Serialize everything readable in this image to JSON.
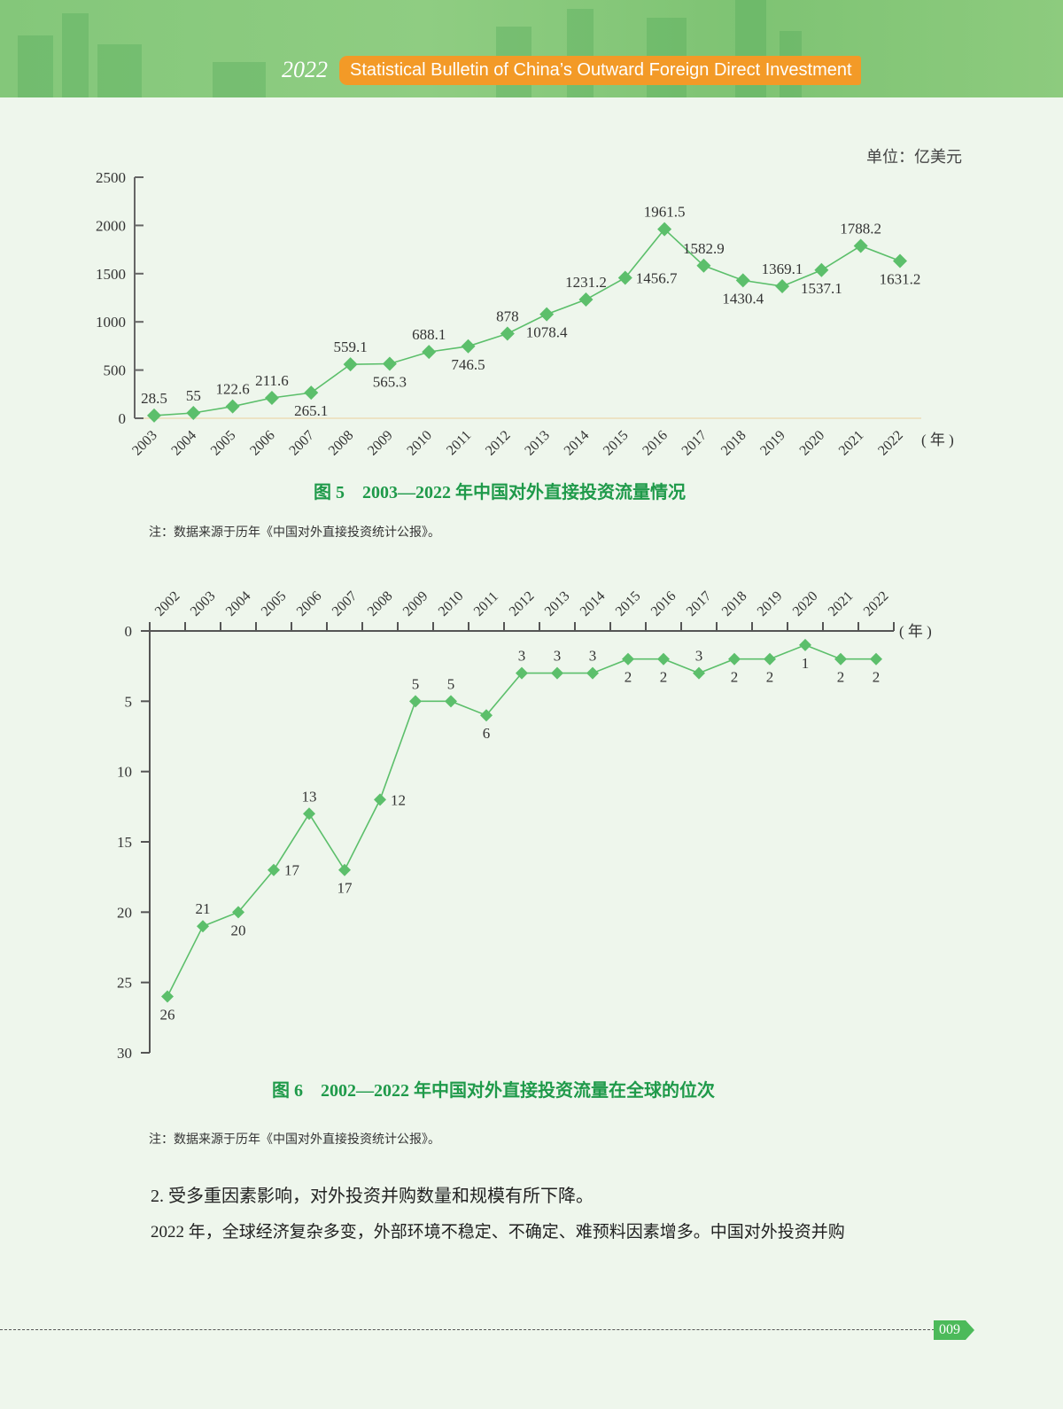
{
  "header": {
    "year": "2022",
    "title": "Statistical Bulletin of China’s Outward Foreign Direct Investment"
  },
  "figure5": {
    "unit": "单位：亿美元",
    "caption": "图 5　2003—2022 年中国对外直接投资流量情况",
    "note": "注：数据来源于历年《中国对外直接投资统计公报》。",
    "x_unit": "( 年 )"
  },
  "figure6": {
    "caption": "图 6　2002—2022 年中国对外直接投资流量在全球的位次",
    "note": "注：数据来源于历年《中国对外直接投资统计公报》。",
    "x_unit": "( 年 )"
  },
  "text": {
    "heading": "2. 受多重因素影响，对外投资并购数量和规模有所下降。",
    "paragraph": "2022 年，全球经济复杂多变，外部环境不稳定、不确定、难预料因素增多。中国对外投资并购"
  },
  "footer": {
    "page_number": "009"
  },
  "colors": {
    "series": "#5cbf6b",
    "caption": "#1f9a4a",
    "banner_pill": "#f39a27",
    "page_tag": "#4cba5a"
  },
  "chart_data": [
    {
      "type": "line",
      "title": "图 5　2003—2022 年中国对外直接投资流量情况",
      "xlabel": "( 年 )",
      "ylabel": "单位：亿美元",
      "ylim": [
        0,
        2500
      ],
      "yticks": [
        0,
        500,
        1000,
        1500,
        2000,
        2500
      ],
      "grid": false,
      "legend": null,
      "categories": [
        "2003",
        "2004",
        "2005",
        "2006",
        "2007",
        "2008",
        "2009",
        "2010",
        "2011",
        "2012",
        "2013",
        "2014",
        "2015",
        "2016",
        "2017",
        "2018",
        "2019",
        "2020",
        "2021",
        "2022"
      ],
      "series": [
        {
          "name": "对外直接投资流量",
          "values": [
            28.5,
            55,
            122.6,
            211.6,
            265.1,
            559.1,
            565.3,
            688.1,
            746.5,
            878,
            1078.4,
            1231.2,
            1456.7,
            1961.5,
            1582.9,
            1430.4,
            1369.1,
            1537.1,
            1788.2,
            1631.2
          ]
        }
      ],
      "label_positions": [
        "above",
        "above",
        "above",
        "above",
        "below",
        "above",
        "below",
        "above",
        "below",
        "above",
        "below",
        "above",
        "right",
        "above",
        "above",
        "below",
        "above",
        "below",
        "above",
        "below"
      ]
    },
    {
      "type": "line",
      "title": "图 6　2002—2022 年中国对外直接投资流量在全球的位次",
      "xlabel": "( 年 )",
      "ylabel": "",
      "ylim": [
        30,
        0
      ],
      "y_inverted": true,
      "yticks": [
        0,
        5,
        10,
        15,
        20,
        25,
        30
      ],
      "grid": false,
      "legend": null,
      "categories": [
        "2002",
        "2003",
        "2004",
        "2005",
        "2006",
        "2007",
        "2008",
        "2009",
        "2010",
        "2011",
        "2012",
        "2013",
        "2014",
        "2015",
        "2016",
        "2017",
        "2018",
        "2019",
        "2020",
        "2021",
        "2022"
      ],
      "series": [
        {
          "name": "全球位次",
          "values": [
            26,
            21,
            20,
            17,
            13,
            17,
            12,
            5,
            5,
            6,
            3,
            3,
            3,
            2,
            2,
            3,
            2,
            2,
            1,
            2,
            2
          ]
        }
      ],
      "label_positions": [
        "below",
        "above",
        "below",
        "right",
        "above",
        "below",
        "right",
        "above",
        "above",
        "below",
        "above",
        "above",
        "above",
        "below",
        "below",
        "above",
        "below",
        "below",
        "below",
        "below",
        "below"
      ]
    }
  ]
}
